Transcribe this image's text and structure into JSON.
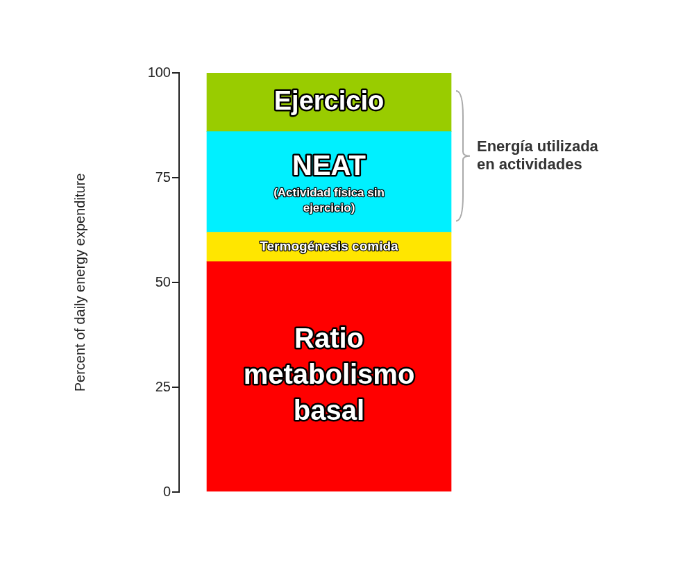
{
  "chart_data": {
    "type": "bar",
    "stacked": true,
    "ylabel": "Percent of daily energy expenditure",
    "categories": [
      null
    ],
    "ylim": [
      0,
      100
    ],
    "yticks": [
      0,
      25,
      50,
      75,
      100
    ],
    "series": [
      {
        "name": "Ratio metabolismo basal",
        "color": "#ff0000",
        "values": [
          55
        ]
      },
      {
        "name": "Termogénesis comida",
        "color": "#ffe600",
        "values": [
          7
        ]
      },
      {
        "name": "NEAT",
        "color": "#00f0ff",
        "values": [
          24
        ]
      },
      {
        "name": "Ejercicio",
        "color": "#99cc00",
        "values": [
          14
        ]
      }
    ],
    "annotations": [
      "(Actividad física sin ejercicio)",
      "Energía utilizada en actividades"
    ]
  }
}
